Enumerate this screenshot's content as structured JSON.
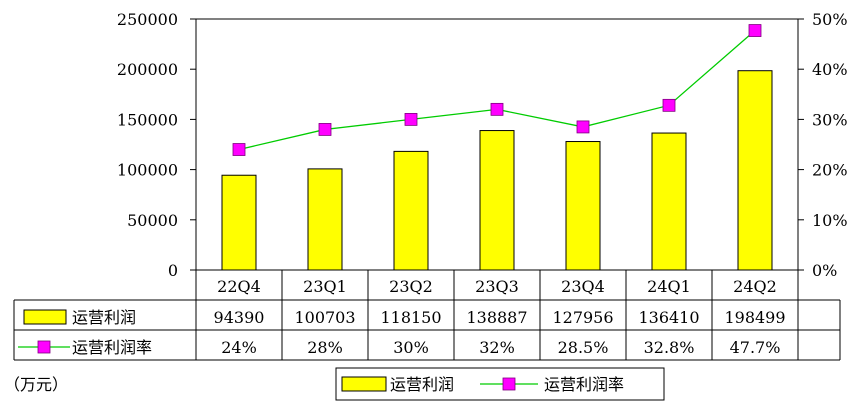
{
  "unit_label": "（万元）",
  "colors": {
    "bar_fill": "#ffff00",
    "bar_stroke": "#000000",
    "line": "#00cc00",
    "marker": "#ff00ff",
    "marker_stroke": "#800080",
    "axis": "#000000"
  },
  "chart_data": {
    "type": "bar",
    "categories": [
      "22Q4",
      "23Q1",
      "23Q2",
      "23Q3",
      "23Q4",
      "24Q1",
      "24Q2"
    ],
    "ylim": [
      0,
      250000
    ],
    "y2lim": [
      0,
      50
    ],
    "y_ticks": [
      "0",
      "50000",
      "100000",
      "150000",
      "200000",
      "250000"
    ],
    "y2_ticks": [
      "0%",
      "10%",
      "20%",
      "30%",
      "40%",
      "50%"
    ],
    "grid": false,
    "legend_position": "bottom",
    "series": [
      {
        "name": "运营利润",
        "type": "bar",
        "axis": "left",
        "values": [
          94390,
          100703,
          118150,
          138887,
          127956,
          136410,
          198499
        ],
        "labels": [
          "94390",
          "100703",
          "118150",
          "138887",
          "127956",
          "136410",
          "198499"
        ]
      },
      {
        "name": "运营利润率",
        "type": "line",
        "axis": "right",
        "values": [
          24,
          28,
          30,
          32,
          28.5,
          32.8,
          47.7
        ],
        "labels": [
          "24%",
          "28%",
          "30%",
          "32%",
          "28.5%",
          "32.8%",
          "47.7%"
        ]
      }
    ]
  }
}
